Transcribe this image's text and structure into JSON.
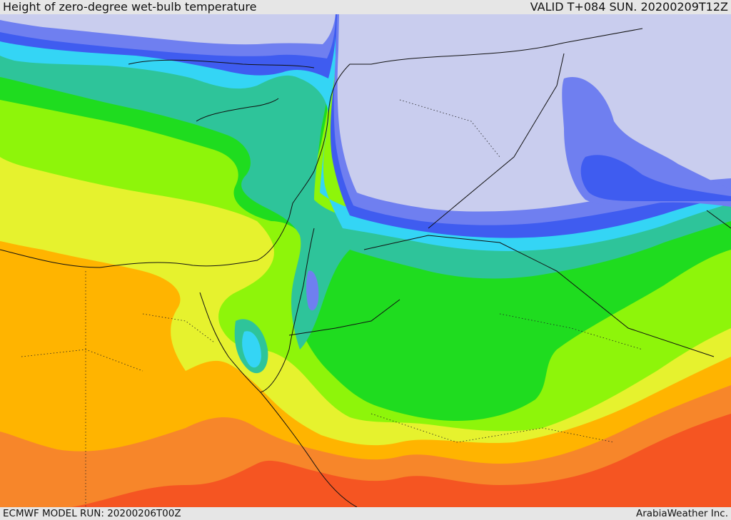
{
  "header": {
    "title": "Height of zero-degree wet-bulb temperature",
    "valid": "VALID T+084 SUN. 20200209T12Z"
  },
  "footer": {
    "model_run": "ECMWF MODEL RUN: 20200206T00Z",
    "credit": "ArabiaWeather Inc."
  },
  "palette": {
    "below_ground": "#c9cdee",
    "lowest": "#9aa6f3",
    "low": "#6f7ff0",
    "blue": "#3f5cf0",
    "cyan": "#34d5f5",
    "teal": "#2ec49a",
    "green": "#1fdc1f",
    "lime": "#8ef50a",
    "yellow": "#e6f22e",
    "amber": "#ffb400",
    "orange": "#f7862a",
    "red": "#f55522"
  }
}
